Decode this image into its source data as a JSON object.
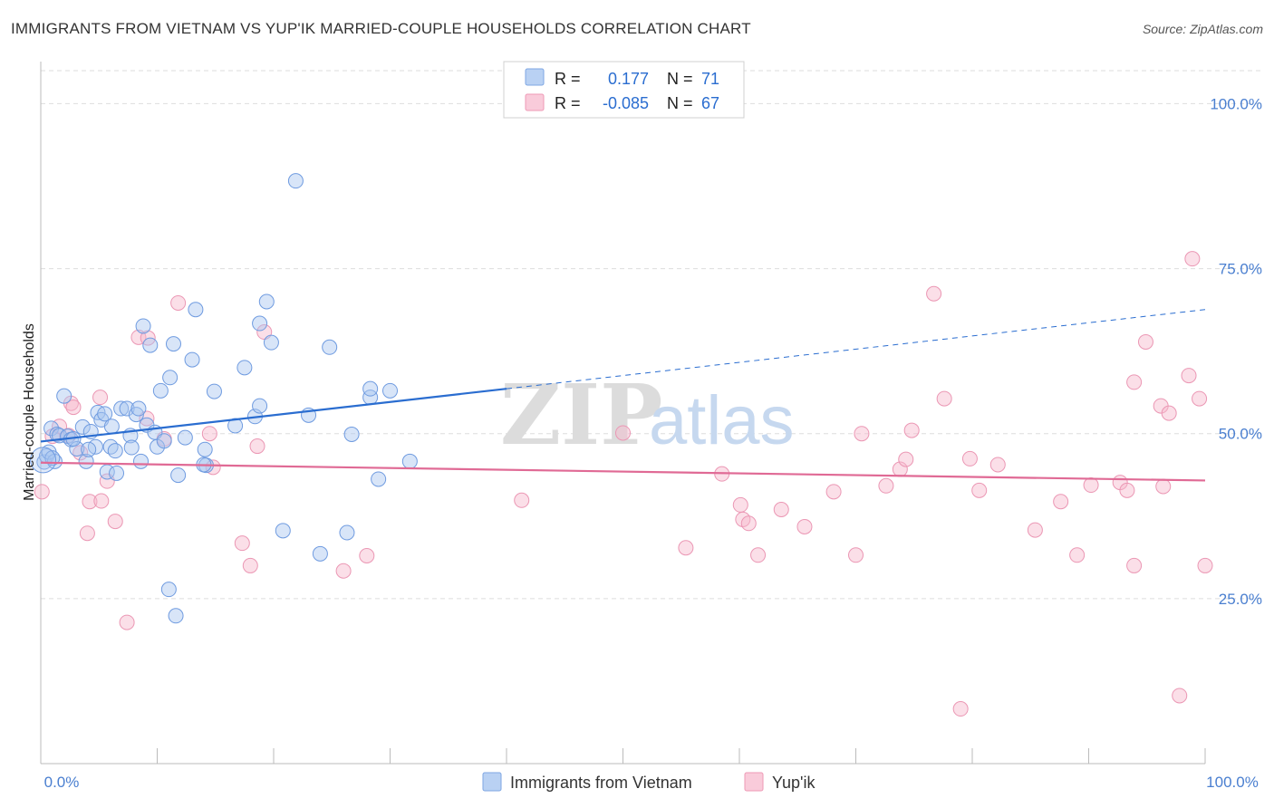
{
  "title": "IMMIGRANTS FROM VIETNAM VS YUP'IK MARRIED-COUPLE HOUSEHOLDS CORRELATION CHART",
  "source": "Source: ZipAtlas.com",
  "watermark": {
    "zip": "ZIP",
    "atlas": "atlas"
  },
  "legend_top": {
    "rows": [
      {
        "r_label": "R =",
        "r_value": "0.177",
        "n_label": "N =",
        "n_value": "71"
      },
      {
        "r_label": "R =",
        "r_value": "-0.085",
        "n_label": "N =",
        "n_value": "67"
      }
    ]
  },
  "chart_data": {
    "type": "scatter",
    "title": "IMMIGRANTS FROM VIETNAM VS YUP'IK MARRIED-COUPLE HOUSEHOLDS CORRELATION CHART",
    "xlabel": "",
    "ylabel": "Married-couple Households",
    "xlim": [
      0,
      100
    ],
    "ylim": [
      0,
      105
    ],
    "x_tick_labels": [
      "0.0%",
      "100.0%"
    ],
    "y_ticks": [
      25,
      50,
      75,
      100
    ],
    "y_tick_labels": [
      "25.0%",
      "50.0%",
      "75.0%",
      "100.0%"
    ],
    "grid": true,
    "legend_position": "bottom",
    "colors": {
      "vietnam": "#a9c6f0",
      "vietnam_line": "#2a6dd0",
      "yupik": "#f6b8cc",
      "yupik_line": "#e06a95"
    },
    "series": [
      {
        "name": "Immigrants from Vietnam",
        "r": 0.177,
        "n": 71,
        "trend": {
          "x0": 0,
          "y0": 48.8,
          "x1": 40.0,
          "y1": 56.8,
          "x_dash_end": 100,
          "y_dash_end": 68.8
        },
        "points": [
          [
            0.3,
            45.7
          ],
          [
            0.5,
            46.6
          ],
          [
            0.7,
            47.2
          ],
          [
            0.9,
            50.8
          ],
          [
            1.2,
            45.8
          ],
          [
            1.4,
            49.9
          ],
          [
            1.6,
            49.7
          ],
          [
            2.0,
            55.7
          ],
          [
            2.3,
            49.6
          ],
          [
            2.6,
            49.1
          ],
          [
            3.1,
            47.7
          ],
          [
            3.6,
            51.0
          ],
          [
            3.9,
            45.8
          ],
          [
            4.3,
            50.3
          ],
          [
            4.7,
            48.0
          ],
          [
            4.9,
            53.2
          ],
          [
            5.2,
            52.1
          ],
          [
            5.5,
            53.0
          ],
          [
            5.7,
            44.2
          ],
          [
            6.0,
            48.0
          ],
          [
            6.1,
            51.1
          ],
          [
            6.5,
            44.0
          ],
          [
            6.9,
            53.8
          ],
          [
            7.4,
            53.8
          ],
          [
            7.7,
            49.7
          ],
          [
            7.8,
            47.9
          ],
          [
            8.2,
            52.9
          ],
          [
            8.4,
            53.8
          ],
          [
            8.6,
            45.8
          ],
          [
            8.8,
            66.3
          ],
          [
            9.1,
            51.3
          ],
          [
            9.4,
            63.4
          ],
          [
            9.8,
            50.2
          ],
          [
            10.0,
            48.0
          ],
          [
            10.3,
            56.5
          ],
          [
            10.6,
            48.9
          ],
          [
            11.1,
            58.5
          ],
          [
            11.4,
            63.6
          ],
          [
            11.8,
            43.7
          ],
          [
            12.4,
            49.4
          ],
          [
            13.0,
            61.2
          ],
          [
            13.3,
            68.8
          ],
          [
            14.1,
            47.6
          ],
          [
            14.2,
            45.2
          ],
          [
            14.9,
            56.4
          ],
          [
            16.7,
            51.2
          ],
          [
            17.5,
            60.0
          ],
          [
            18.4,
            52.6
          ],
          [
            18.8,
            54.2
          ],
          [
            18.8,
            66.7
          ],
          [
            19.4,
            70.0
          ],
          [
            19.8,
            63.8
          ],
          [
            20.8,
            35.3
          ],
          [
            21.9,
            88.3
          ],
          [
            23.0,
            52.8
          ],
          [
            24.0,
            31.8
          ],
          [
            24.8,
            63.1
          ],
          [
            26.3,
            35.0
          ],
          [
            26.7,
            49.9
          ],
          [
            28.3,
            55.5
          ],
          [
            28.3,
            56.8
          ],
          [
            29.0,
            43.1
          ],
          [
            30.0,
            56.5
          ],
          [
            31.7,
            45.8
          ],
          [
            11.0,
            26.4
          ],
          [
            11.6,
            22.4
          ],
          [
            14.0,
            45.3
          ],
          [
            4.1,
            47.6
          ],
          [
            2.8,
            49.2
          ],
          [
            1.0,
            46.3
          ],
          [
            6.4,
            47.4
          ]
        ]
      },
      {
        "name": "Yup'ik",
        "r": -0.085,
        "n": 67,
        "trend": {
          "x0": 0,
          "y0": 45.6,
          "x1": 100,
          "y1": 42.9
        },
        "points": [
          [
            0.1,
            41.2
          ],
          [
            1.0,
            49.6
          ],
          [
            1.6,
            51.1
          ],
          [
            2.4,
            49.7
          ],
          [
            2.6,
            54.6
          ],
          [
            2.8,
            54.0
          ],
          [
            3.4,
            47.1
          ],
          [
            4.0,
            34.9
          ],
          [
            4.2,
            39.7
          ],
          [
            5.1,
            55.5
          ],
          [
            5.2,
            39.8
          ],
          [
            5.7,
            42.8
          ],
          [
            6.4,
            36.7
          ],
          [
            7.4,
            21.4
          ],
          [
            8.4,
            64.6
          ],
          [
            9.1,
            52.3
          ],
          [
            9.2,
            64.5
          ],
          [
            10.6,
            49.2
          ],
          [
            11.8,
            69.8
          ],
          [
            14.5,
            50.0
          ],
          [
            14.8,
            44.9
          ],
          [
            17.3,
            33.4
          ],
          [
            18.0,
            30.0
          ],
          [
            18.6,
            48.1
          ],
          [
            19.2,
            65.4
          ],
          [
            26.0,
            29.2
          ],
          [
            28.0,
            31.5
          ],
          [
            41.3,
            39.9
          ],
          [
            50.0,
            50.1
          ],
          [
            55.4,
            32.7
          ],
          [
            58.5,
            43.9
          ],
          [
            60.1,
            39.2
          ],
          [
            60.3,
            37.0
          ],
          [
            60.8,
            36.4
          ],
          [
            61.6,
            31.6
          ],
          [
            63.6,
            38.5
          ],
          [
            65.6,
            35.9
          ],
          [
            68.1,
            41.2
          ],
          [
            70.0,
            31.6
          ],
          [
            70.5,
            50.0
          ],
          [
            72.6,
            42.1
          ],
          [
            73.8,
            44.6
          ],
          [
            74.3,
            46.1
          ],
          [
            74.8,
            50.5
          ],
          [
            76.7,
            71.2
          ],
          [
            77.6,
            55.3
          ],
          [
            79.0,
            8.3
          ],
          [
            79.8,
            46.2
          ],
          [
            80.6,
            41.4
          ],
          [
            82.2,
            45.3
          ],
          [
            85.4,
            35.4
          ],
          [
            87.6,
            39.7
          ],
          [
            89.0,
            31.6
          ],
          [
            90.2,
            42.2
          ],
          [
            92.7,
            42.6
          ],
          [
            93.3,
            41.4
          ],
          [
            93.9,
            30.0
          ],
          [
            93.9,
            57.8
          ],
          [
            94.9,
            63.9
          ],
          [
            96.2,
            54.2
          ],
          [
            96.4,
            42.0
          ],
          [
            96.9,
            53.1
          ],
          [
            97.8,
            10.3
          ],
          [
            98.6,
            58.8
          ],
          [
            98.9,
            76.5
          ],
          [
            100.0,
            30.0
          ],
          [
            99.5,
            55.3
          ]
        ]
      }
    ]
  }
}
